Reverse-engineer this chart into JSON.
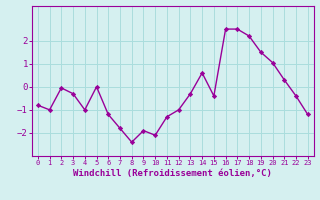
{
  "x": [
    0,
    1,
    2,
    3,
    4,
    5,
    6,
    7,
    8,
    9,
    10,
    11,
    12,
    13,
    14,
    15,
    16,
    17,
    18,
    19,
    20,
    21,
    22,
    23
  ],
  "y": [
    -0.8,
    -1.0,
    -0.05,
    -0.3,
    -1.0,
    0.0,
    -1.2,
    -1.8,
    -2.4,
    -1.9,
    -2.1,
    -1.3,
    -1.0,
    -0.3,
    0.6,
    -0.4,
    2.5,
    2.5,
    2.2,
    1.5,
    1.05,
    0.3,
    -0.4,
    -1.2
  ],
  "line_color": "#990099",
  "marker": "D",
  "marker_size": 2.2,
  "linewidth": 1.0,
  "xlabel": "Windchill (Refroidissement éolien,°C)",
  "xlabel_fontsize": 6.5,
  "bg_color": "#d5f0f0",
  "grid_color": "#aadddd",
  "tick_color": "#990099",
  "ylim": [
    -3.0,
    3.5
  ],
  "yticks": [
    -2,
    -1,
    0,
    1,
    2
  ],
  "xtick_labels": [
    "0",
    "1",
    "2",
    "3",
    "4",
    "5",
    "6",
    "7",
    "8",
    "9",
    "10",
    "11",
    "12",
    "13",
    "14",
    "15",
    "16",
    "17",
    "18",
    "19",
    "20",
    "21",
    "22",
    "23"
  ]
}
